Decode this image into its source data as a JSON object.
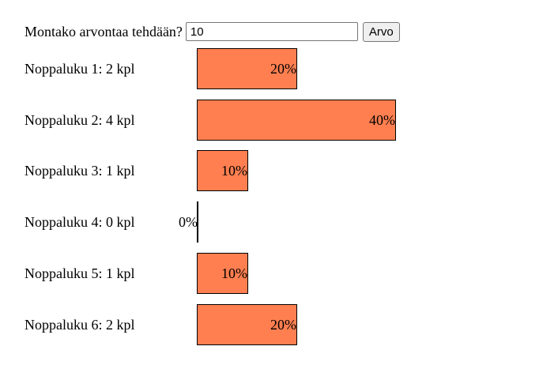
{
  "form": {
    "prompt": "Montako arvontaa tehdään?",
    "input_value": "10",
    "button_label": "Arvo"
  },
  "results": [
    {
      "label": "Noppaluku 1: 2 kpl",
      "percent": 20,
      "percent_label": "20%"
    },
    {
      "label": "Noppaluku 2: 4 kpl",
      "percent": 40,
      "percent_label": "40%"
    },
    {
      "label": "Noppaluku 3: 1 kpl",
      "percent": 10,
      "percent_label": "10%"
    },
    {
      "label": "Noppaluku 4: 0 kpl",
      "percent": 0,
      "percent_label": "0%"
    },
    {
      "label": "Noppaluku 5: 1 kpl",
      "percent": 10,
      "percent_label": "10%"
    },
    {
      "label": "Noppaluku 6: 2 kpl",
      "percent": 20,
      "percent_label": "20%"
    }
  ],
  "colors": {
    "bar_fill": "#ff7f50",
    "bar_border": "#000000"
  }
}
